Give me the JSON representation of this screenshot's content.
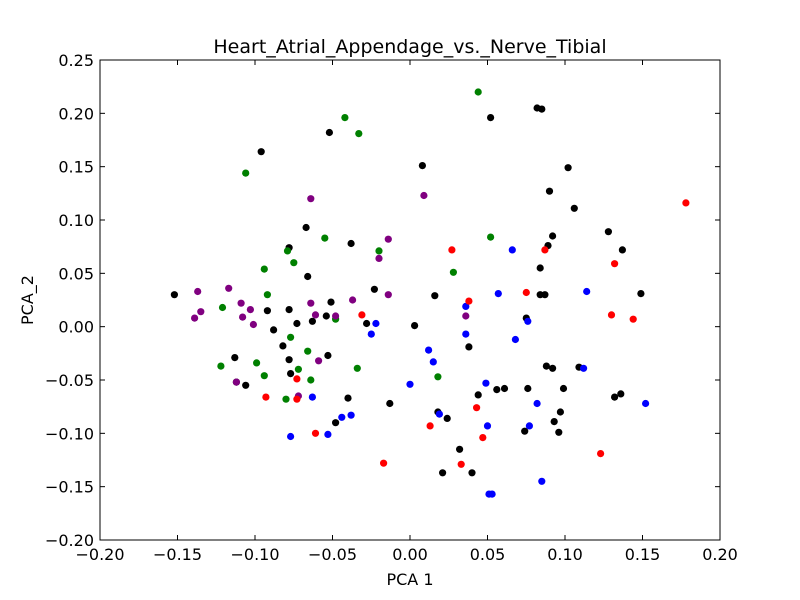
{
  "chart_data": {
    "type": "scatter",
    "title": "Heart_Atrial_Appendage_vs._Nerve_Tibial",
    "xlabel": "PCA 1",
    "ylabel": "PCA_2",
    "xlim": [
      -0.2,
      0.2
    ],
    "ylim": [
      -0.2,
      0.25
    ],
    "xticks": [
      -0.2,
      -0.15,
      -0.1,
      -0.05,
      0.0,
      0.05,
      0.1,
      0.15,
      0.2
    ],
    "xtick_labels": [
      "−0.20",
      "−0.15",
      "−0.10",
      "−0.05",
      "0.00",
      "0.05",
      "0.10",
      "0.15",
      "0.20"
    ],
    "yticks": [
      -0.2,
      -0.15,
      -0.1,
      -0.05,
      0.0,
      0.05,
      0.1,
      0.15,
      0.2,
      0.25
    ],
    "ytick_labels": [
      "−0.20",
      "−0.15",
      "−0.10",
      "−0.05",
      "0.00",
      "0.05",
      "0.10",
      "0.15",
      "0.20",
      "0.25"
    ],
    "grid": false,
    "legend": "none",
    "series": [
      {
        "color": "#000000",
        "points": [
          [
            -0.152,
            0.03
          ],
          [
            -0.096,
            0.164
          ],
          [
            -0.052,
            0.182
          ],
          [
            0.052,
            0.196
          ],
          [
            0.082,
            0.205
          ],
          [
            0.085,
            0.204
          ],
          [
            0.008,
            0.151
          ],
          [
            0.102,
            0.149
          ],
          [
            0.09,
            0.127
          ],
          [
            0.106,
            0.111
          ],
          [
            -0.067,
            0.093
          ],
          [
            0.128,
            0.089
          ],
          [
            0.092,
            0.085
          ],
          [
            0.089,
            0.076
          ],
          [
            -0.078,
            0.074
          ],
          [
            -0.038,
            0.078
          ],
          [
            0.137,
            0.072
          ],
          [
            -0.066,
            0.047
          ],
          [
            0.084,
            0.055
          ],
          [
            0.084,
            0.03
          ],
          [
            0.149,
            0.031
          ],
          [
            -0.023,
            0.035
          ],
          [
            0.087,
            0.03
          ],
          [
            0.016,
            0.029
          ],
          [
            -0.051,
            0.023
          ],
          [
            -0.078,
            0.016
          ],
          [
            -0.092,
            0.015
          ],
          [
            -0.054,
            0.01
          ],
          [
            -0.073,
            0.003
          ],
          [
            -0.063,
            0.005
          ],
          [
            -0.088,
            -0.003
          ],
          [
            0.075,
            0.008
          ],
          [
            -0.028,
            0.003
          ],
          [
            0.003,
            0.001
          ],
          [
            0.038,
            -0.019
          ],
          [
            -0.082,
            -0.018
          ],
          [
            -0.113,
            -0.029
          ],
          [
            -0.078,
            -0.031
          ],
          [
            -0.053,
            -0.027
          ],
          [
            0.088,
            -0.037
          ],
          [
            0.092,
            -0.039
          ],
          [
            0.109,
            -0.038
          ],
          [
            -0.112,
            -0.052
          ],
          [
            -0.106,
            -0.055
          ],
          [
            -0.077,
            -0.044
          ],
          [
            0.056,
            -0.059
          ],
          [
            0.061,
            -0.058
          ],
          [
            0.076,
            -0.058
          ],
          [
            0.099,
            -0.058
          ],
          [
            0.044,
            -0.064
          ],
          [
            -0.04,
            -0.067
          ],
          [
            0.132,
            -0.066
          ],
          [
            0.136,
            -0.063
          ],
          [
            -0.013,
            -0.072
          ],
          [
            0.018,
            -0.08
          ],
          [
            0.097,
            -0.08
          ],
          [
            0.024,
            -0.086
          ],
          [
            0.093,
            -0.089
          ],
          [
            -0.048,
            -0.09
          ],
          [
            0.074,
            -0.098
          ],
          [
            0.096,
            -0.099
          ],
          [
            0.032,
            -0.115
          ],
          [
            0.021,
            -0.137
          ],
          [
            0.04,
            -0.137
          ]
        ]
      },
      {
        "color": "#008000",
        "points": [
          [
            0.044,
            0.22
          ],
          [
            -0.042,
            0.196
          ],
          [
            -0.033,
            0.181
          ],
          [
            -0.106,
            0.144
          ],
          [
            -0.055,
            0.083
          ],
          [
            0.052,
            0.084
          ],
          [
            -0.079,
            0.071
          ],
          [
            -0.02,
            0.071
          ],
          [
            -0.075,
            0.06
          ],
          [
            -0.094,
            0.054
          ],
          [
            0.028,
            0.051
          ],
          [
            -0.092,
            0.03
          ],
          [
            -0.121,
            0.018
          ],
          [
            -0.048,
            0.007
          ],
          [
            -0.077,
            -0.01
          ],
          [
            -0.066,
            -0.023
          ],
          [
            -0.099,
            -0.034
          ],
          [
            -0.122,
            -0.037
          ],
          [
            -0.034,
            -0.039
          ],
          [
            -0.072,
            -0.04
          ],
          [
            0.018,
            -0.047
          ],
          [
            -0.064,
            -0.05
          ],
          [
            -0.094,
            -0.046
          ],
          [
            -0.08,
            -0.068
          ]
        ]
      },
      {
        "color": "#800080",
        "points": [
          [
            -0.064,
            0.12
          ],
          [
            0.009,
            0.123
          ],
          [
            -0.014,
            0.082
          ],
          [
            -0.02,
            0.064
          ],
          [
            -0.137,
            0.033
          ],
          [
            -0.117,
            0.036
          ],
          [
            -0.014,
            0.03
          ],
          [
            -0.037,
            0.025
          ],
          [
            -0.109,
            0.022
          ],
          [
            -0.064,
            0.022
          ],
          [
            -0.135,
            0.014
          ],
          [
            -0.103,
            0.016
          ],
          [
            -0.061,
            0.011
          ],
          [
            -0.048,
            0.01
          ],
          [
            -0.139,
            0.008
          ],
          [
            -0.108,
            0.009
          ],
          [
            0.036,
            0.01
          ],
          [
            -0.101,
            0.002
          ],
          [
            -0.059,
            -0.032
          ],
          [
            -0.112,
            -0.052
          ],
          [
            -0.072,
            -0.065
          ]
        ]
      },
      {
        "color": "#0000ff",
        "points": [
          [
            0.066,
            0.072
          ],
          [
            0.114,
            0.033
          ],
          [
            0.057,
            0.031
          ],
          [
            0.036,
            0.019
          ],
          [
            0.076,
            0.005
          ],
          [
            -0.022,
            0.003
          ],
          [
            -0.025,
            -0.007
          ],
          [
            0.036,
            -0.007
          ],
          [
            0.068,
            -0.012
          ],
          [
            0.012,
            -0.022
          ],
          [
            0.015,
            -0.033
          ],
          [
            0.112,
            -0.039
          ],
          [
            0.0,
            -0.054
          ],
          [
            0.049,
            -0.053
          ],
          [
            -0.063,
            -0.066
          ],
          [
            0.152,
            -0.072
          ],
          [
            0.082,
            -0.072
          ],
          [
            0.019,
            -0.082
          ],
          [
            -0.044,
            -0.085
          ],
          [
            -0.038,
            -0.083
          ],
          [
            0.05,
            -0.093
          ],
          [
            0.077,
            -0.093
          ],
          [
            -0.077,
            -0.103
          ],
          [
            -0.053,
            -0.101
          ],
          [
            0.085,
            -0.145
          ],
          [
            0.051,
            -0.157
          ],
          [
            0.053,
            -0.157
          ]
        ]
      },
      {
        "color": "#ff0000",
        "points": [
          [
            0.178,
            0.116
          ],
          [
            0.027,
            0.072
          ],
          [
            0.087,
            0.072
          ],
          [
            0.132,
            0.059
          ],
          [
            0.075,
            0.032
          ],
          [
            0.038,
            0.024
          ],
          [
            -0.031,
            0.011
          ],
          [
            0.13,
            0.011
          ],
          [
            0.144,
            0.007
          ],
          [
            -0.073,
            -0.049
          ],
          [
            -0.093,
            -0.066
          ],
          [
            -0.073,
            -0.068
          ],
          [
            0.043,
            -0.076
          ],
          [
            0.013,
            -0.093
          ],
          [
            -0.061,
            -0.1
          ],
          [
            0.047,
            -0.104
          ],
          [
            0.123,
            -0.119
          ],
          [
            -0.017,
            -0.128
          ],
          [
            0.033,
            -0.129
          ]
        ]
      }
    ]
  }
}
